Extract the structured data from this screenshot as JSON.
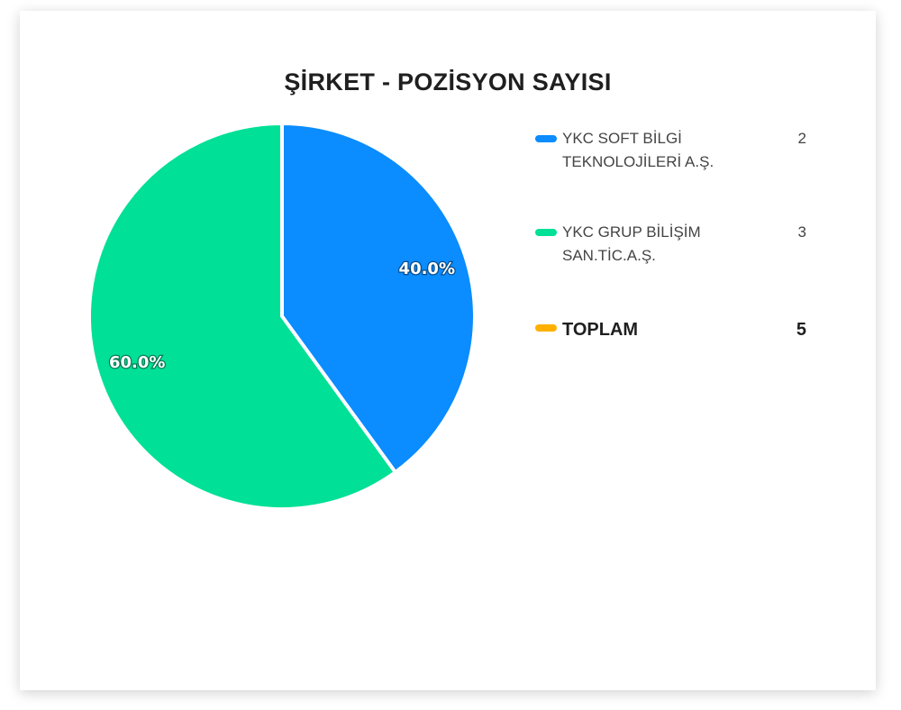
{
  "chart_data": {
    "type": "pie",
    "title": "ŞİRKET - POZİSYON SAYISI",
    "slices": [
      {
        "label": "YKC SOFT BİLGİ TEKNOLOJİLERİ A.Ş.",
        "value": 2,
        "percent_label": "40.0%",
        "color": "#0b8cff"
      },
      {
        "label": "YKC GRUP BİLİŞİM SAN.TİC.A.Ş.",
        "value": 3,
        "percent_label": "60.0%",
        "color": "#00e096"
      }
    ],
    "total": {
      "label": "TOPLAM",
      "value": "5",
      "color": "#ffb000"
    },
    "legend_placement": "right",
    "legend": {
      "items": [
        {
          "line1": "YKC SOFT BİLGİ",
          "line2": "TEKNOLOJİLERİ A.Ş.",
          "value": "2",
          "color": "#0b8cff"
        },
        {
          "line1": "YKC GRUP BİLİŞİM",
          "line2": "SAN.TİC.A.Ş.",
          "value": "3",
          "color": "#00e096"
        }
      ]
    }
  }
}
